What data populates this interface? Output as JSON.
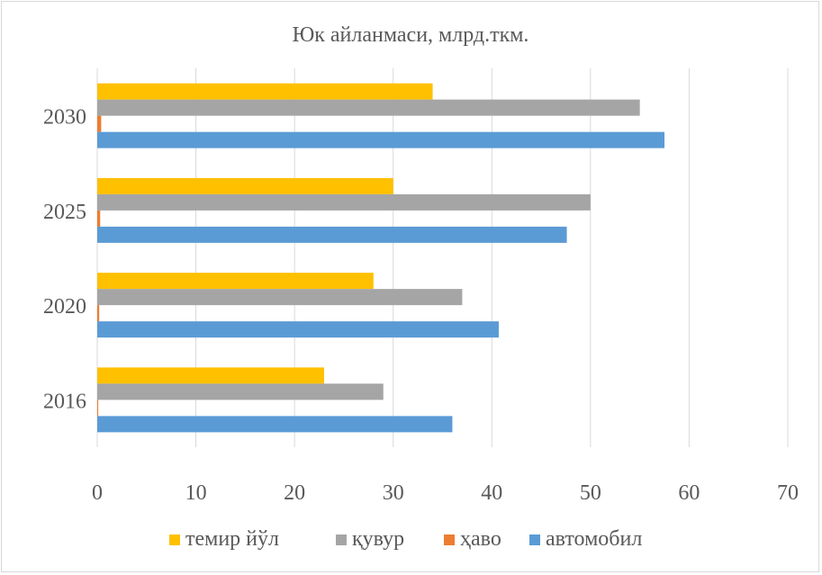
{
  "chart_data": {
    "type": "bar",
    "orientation": "horizontal",
    "title": "Юк айланмаси, млрд.ткм.",
    "categories": [
      "2016",
      "2020",
      "2025",
      "2030"
    ],
    "series": [
      {
        "name": "темир йўл",
        "color": "#ffc000",
        "values": [
          23,
          28,
          30,
          34
        ]
      },
      {
        "name": "қувур",
        "color": "#a5a5a5",
        "values": [
          29,
          37,
          50,
          55
        ]
      },
      {
        "name": "ҳаво",
        "color": "#ed7d31",
        "values": [
          0.1,
          0.2,
          0.3,
          0.4
        ]
      },
      {
        "name": "автомобил",
        "color": "#5b9bd5",
        "values": [
          36,
          40.7,
          47.6,
          57.5
        ]
      }
    ],
    "xlim": [
      0,
      70
    ],
    "xticks": [
      "0",
      "10",
      "20",
      "30",
      "40",
      "50",
      "60",
      "70"
    ],
    "grid": true,
    "legend_position": "bottom"
  }
}
